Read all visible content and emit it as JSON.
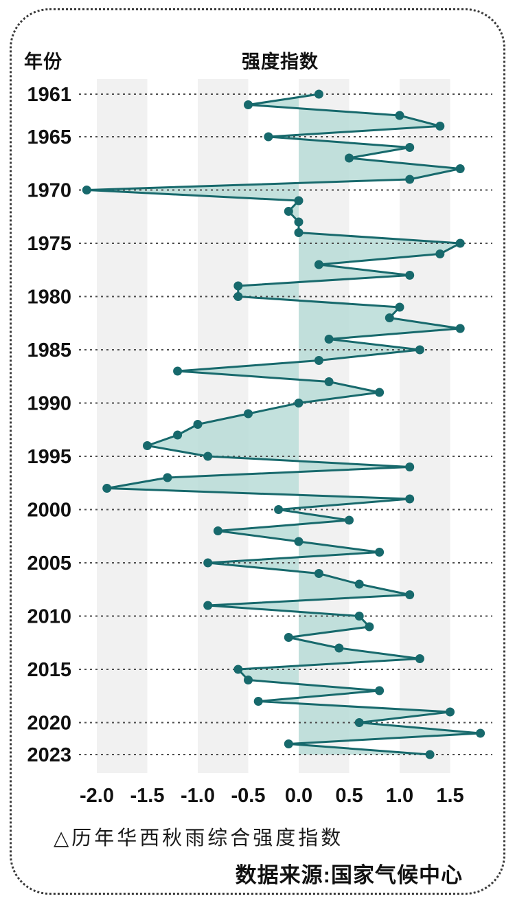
{
  "header": {
    "year_column": "年份",
    "index_column": "强度指数"
  },
  "footer": {
    "caption": "△历年华西秋雨综合强度指数",
    "source": "数据来源:国家气候中心"
  },
  "colors": {
    "line": "#17696c",
    "point": "#17696c",
    "area_fill": "#b9dcd7",
    "grid_band": "#f1f1f1",
    "gridline": "#4d4d4d",
    "text": "#111111"
  },
  "chart_data": {
    "type": "line",
    "orientation": "vertical-time-axis",
    "title": "历年华西秋雨综合强度指数",
    "ylabel": "年份",
    "xlabel": "强度指数",
    "xlim": [
      -2.2,
      1.95
    ],
    "grid": "dashed-horizontal-per-labeled-year",
    "legend_position": "none",
    "x_ticks": [
      -2.0,
      -1.5,
      -1.0,
      -0.5,
      0.0,
      0.5,
      1.0,
      1.5
    ],
    "x_tick_labels": [
      "-2.0",
      "-1.5",
      "-1.0",
      "-0.5",
      "0.0",
      "0.5",
      "1.0",
      "1.5"
    ],
    "grid_bands": [
      [
        -2.0,
        -1.5
      ],
      [
        -1.0,
        -0.5
      ],
      [
        0.0,
        0.5
      ],
      [
        1.0,
        1.5
      ]
    ],
    "year_gridlines": [
      1961,
      1965,
      1970,
      1975,
      1980,
      1985,
      1990,
      1995,
      2000,
      2005,
      2010,
      2015,
      2020,
      2023
    ],
    "years": [
      1961,
      1962,
      1963,
      1964,
      1965,
      1966,
      1967,
      1968,
      1969,
      1970,
      1971,
      1972,
      1973,
      1974,
      1975,
      1976,
      1977,
      1978,
      1979,
      1980,
      1981,
      1982,
      1983,
      1984,
      1985,
      1986,
      1987,
      1988,
      1989,
      1990,
      1991,
      1992,
      1993,
      1994,
      1995,
      1996,
      1997,
      1998,
      1999,
      2000,
      2001,
      2002,
      2003,
      2004,
      2005,
      2006,
      2007,
      2008,
      2009,
      2010,
      2011,
      2012,
      2013,
      2014,
      2015,
      2016,
      2017,
      2018,
      2019,
      2020,
      2021,
      2022,
      2023
    ],
    "values": [
      0.2,
      -0.5,
      1.0,
      1.4,
      -0.3,
      1.1,
      0.5,
      1.6,
      1.1,
      -2.1,
      0.0,
      -0.1,
      0.0,
      0.0,
      1.6,
      1.4,
      0.2,
      1.1,
      -0.6,
      -0.6,
      1.0,
      0.9,
      1.6,
      0.3,
      1.2,
      0.2,
      -1.2,
      0.3,
      0.8,
      0.0,
      -0.5,
      -1.0,
      -1.2,
      -1.5,
      -0.9,
      1.1,
      -1.3,
      -1.9,
      1.1,
      -0.2,
      0.5,
      -0.8,
      0.0,
      0.8,
      -0.9,
      0.2,
      0.6,
      1.1,
      -0.9,
      0.6,
      0.7,
      -0.1,
      0.4,
      1.2,
      -0.6,
      -0.5,
      0.8,
      -0.4,
      1.5,
      0.6,
      1.8,
      -0.1,
      1.3
    ]
  }
}
